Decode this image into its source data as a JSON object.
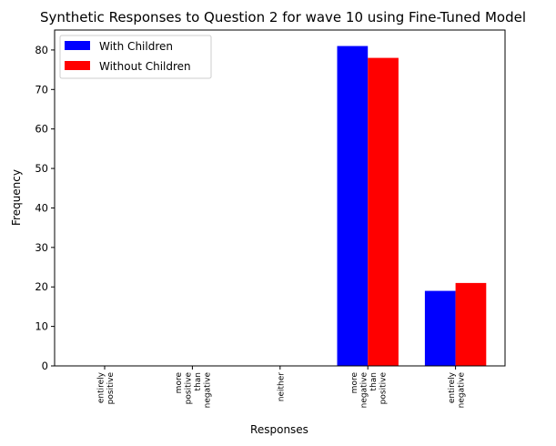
{
  "chart_data": {
    "type": "bar",
    "title": "Synthetic Responses to Question 2 for wave 10 using Fine-Tuned Model",
    "xlabel": "Responses",
    "ylabel": "Frequency",
    "categories": [
      [
        "entirely",
        "positive"
      ],
      [
        "more",
        "positive",
        "than",
        "negative"
      ],
      [
        "neither"
      ],
      [
        "more",
        "negative",
        "than",
        "positive"
      ],
      [
        "entirely",
        "negative"
      ]
    ],
    "series": [
      {
        "name": "With Children",
        "color": "#0000ff",
        "values": [
          0,
          0,
          0,
          81,
          19
        ]
      },
      {
        "name": "Without Children",
        "color": "#ff0000",
        "values": [
          0,
          0,
          0,
          78,
          21
        ]
      }
    ],
    "ylim": [
      0,
      85.05
    ],
    "yticks": [
      0,
      10,
      20,
      30,
      40,
      50,
      60,
      70,
      80
    ],
    "grid": false,
    "legend": "top-left"
  }
}
